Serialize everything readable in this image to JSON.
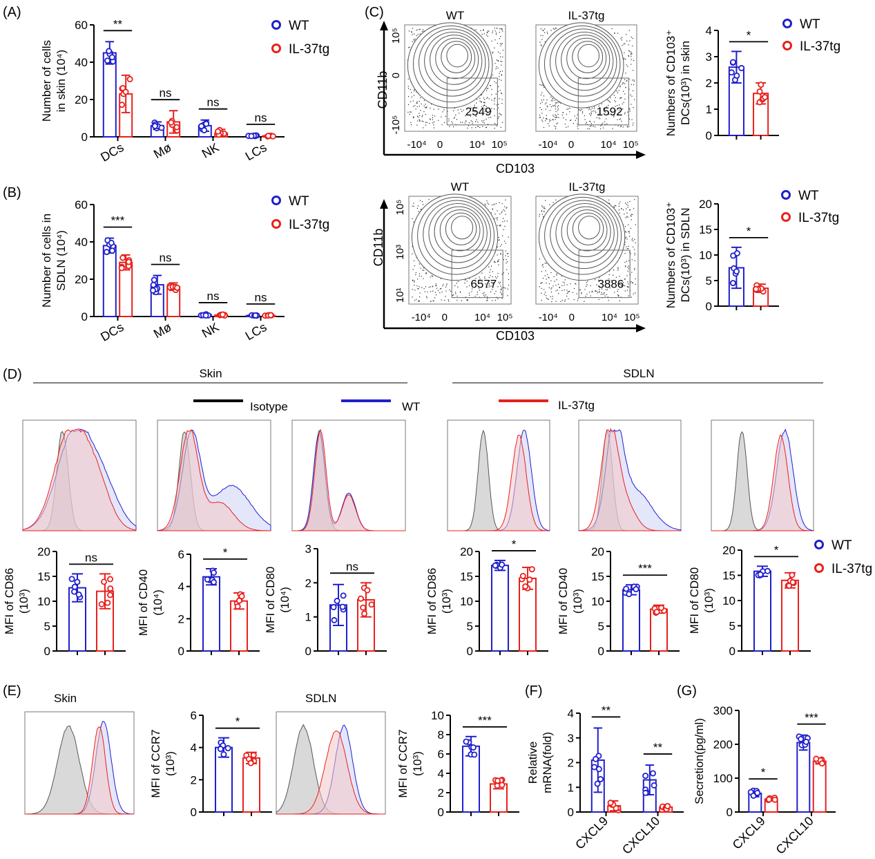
{
  "colors": {
    "wt": "#1f1fcc",
    "tg": "#e8201c",
    "isotype": "#000000",
    "iso_fill": "#cfcfcf",
    "wt_fill": "#c9cdf5",
    "tg_fill": "#f4c6c6"
  },
  "legend": {
    "wt": "WT",
    "tg": "IL-37tg",
    "isotype": "Isotype"
  },
  "panels": {
    "A": "(A)",
    "B": "(B)",
    "C": "(C)",
    "D": "(D)",
    "E": "(E)",
    "F": "(F)",
    "G": "(G)"
  },
  "headers": {
    "skin": "Skin",
    "sdln": "SDLN"
  },
  "flow": {
    "top": {
      "wt": "WT",
      "tg": "IL-37tg",
      "xlabel": "CD103",
      "ylabel": "CD11b",
      "yticks": [
        "10⁵",
        "0",
        "-10⁵"
      ],
      "xticks": [
        "-10⁴",
        "0",
        "10⁴",
        "10⁵"
      ],
      "count_wt": "2549",
      "count_tg": "1592"
    },
    "bottom": {
      "wt": "WT",
      "tg": "IL-37tg",
      "xlabel": "CD103",
      "ylabel": "CD11b",
      "yticks": [
        "10⁵",
        "10³",
        "10¹"
      ],
      "xticks": [
        "-10⁴",
        "0",
        "10⁴",
        "10⁵"
      ],
      "count_wt": "6577",
      "count_tg": "3886"
    }
  },
  "hist_labels": {
    "skin": "Skin",
    "sdln": "SDLN"
  },
  "chart_data": [
    {
      "id": "A",
      "type": "bar",
      "categories": [
        "DCs",
        "Mø",
        "NK",
        "LCs"
      ],
      "series": [
        {
          "name": "WT",
          "values": [
            45,
            6,
            6,
            0.5
          ],
          "sd": [
            6,
            2,
            3,
            0.3
          ]
        },
        {
          "name": "IL-37tg",
          "values": [
            23,
            8,
            2,
            0.5
          ],
          "sd": [
            10,
            6,
            2,
            0.3
          ]
        }
      ],
      "ylabel": "Number of cells\nin skin (10⁴)",
      "yticks": [
        "0",
        "20",
        "40",
        "60"
      ],
      "ylim": [
        0,
        60
      ],
      "significance": [
        "**",
        "ns",
        "ns",
        "ns"
      ]
    },
    {
      "id": "B",
      "type": "bar",
      "categories": [
        "DCs",
        "Mø",
        "NK",
        "LCs"
      ],
      "series": [
        {
          "name": "WT",
          "values": [
            38,
            17,
            1,
            0.5
          ],
          "sd": [
            4,
            5,
            0.5,
            0.3
          ]
        },
        {
          "name": "IL-37tg",
          "values": [
            29,
            16,
            0.8,
            0.5
          ],
          "sd": [
            4,
            2,
            0.4,
            0.3
          ]
        }
      ],
      "ylabel": "Number of cells in\nSDLN (10⁴)",
      "yticks": [
        "0",
        "20",
        "40",
        "60"
      ],
      "ylim": [
        0,
        60
      ],
      "significance": [
        "***",
        "ns",
        "ns",
        "ns"
      ]
    },
    {
      "id": "C-top",
      "type": "bar",
      "categories": [
        "WT",
        "IL-37tg"
      ],
      "values": [
        2.6,
        1.6
      ],
      "sd": [
        0.6,
        0.4
      ],
      "ylabel": "Numbers of CD103⁺\nDCs(10³) in skin",
      "yticks": [
        "0",
        "1",
        "2",
        "3",
        "4"
      ],
      "ylim": [
        0,
        4
      ],
      "significance": "*"
    },
    {
      "id": "C-bottom",
      "type": "bar",
      "categories": [
        "WT",
        "IL-37tg"
      ],
      "values": [
        7.5,
        3.5
      ],
      "sd": [
        4,
        0.8
      ],
      "ylabel": "Numbers of CD103⁺\nDCs(10³) in SDLN",
      "yticks": [
        "0",
        "5",
        "10",
        "15",
        "20"
      ],
      "ylim": [
        0,
        20
      ],
      "significance": "*"
    },
    {
      "id": "D-skin-CD86",
      "type": "bar",
      "categories": [
        "WT",
        "IL-37tg"
      ],
      "values": [
        12.7,
        12
      ],
      "sd": [
        2.8,
        3.5
      ],
      "ylabel": "MFI of CD86\n(10³)",
      "yticks": [
        "0",
        "5",
        "10",
        "15",
        "20"
      ],
      "ylim": [
        0,
        20
      ],
      "significance": "ns"
    },
    {
      "id": "D-skin-CD40",
      "type": "bar",
      "categories": [
        "WT",
        "IL-37tg"
      ],
      "values": [
        4.6,
        3.1
      ],
      "sd": [
        0.5,
        0.5
      ],
      "ylabel": "MFI of CD40\n(10⁴)",
      "yticks": [
        "0",
        "2",
        "4",
        "6"
      ],
      "ylim": [
        0,
        6
      ],
      "significance": "*"
    },
    {
      "id": "D-skin-CD80",
      "type": "bar",
      "categories": [
        "WT",
        "IL-37tg"
      ],
      "values": [
        1.35,
        1.5
      ],
      "sd": [
        0.6,
        0.5
      ],
      "ylabel": "MFI of CD80\n(10⁴)",
      "yticks": [
        "0",
        "1",
        "2",
        "3"
      ],
      "ylim": [
        0,
        3
      ],
      "significance": "ns"
    },
    {
      "id": "D-sdln-CD86",
      "type": "bar",
      "categories": [
        "WT",
        "IL-37tg"
      ],
      "values": [
        17.2,
        14.6
      ],
      "sd": [
        1,
        2.2
      ],
      "ylabel": "MFI of CD86\n(10³)",
      "yticks": [
        "0",
        "5",
        "10",
        "15",
        "20"
      ],
      "ylim": [
        0,
        20
      ],
      "significance": "*"
    },
    {
      "id": "D-sdln-CD40",
      "type": "bar",
      "categories": [
        "WT",
        "IL-37tg"
      ],
      "values": [
        12.3,
        8.4
      ],
      "sd": [
        1,
        0.8
      ],
      "ylabel": "MFI of CD40\n(10³)",
      "yticks": [
        "0",
        "5",
        "10",
        "15",
        "20"
      ],
      "ylim": [
        0,
        20
      ],
      "significance": "***"
    },
    {
      "id": "D-sdln-CD80",
      "type": "bar",
      "categories": [
        "WT",
        "IL-37tg"
      ],
      "values": [
        15.8,
        14
      ],
      "sd": [
        1,
        1.5
      ],
      "ylabel": "MFI of CD80\n(10³)",
      "yticks": [
        "0",
        "5",
        "10",
        "15",
        "20"
      ],
      "ylim": [
        0,
        20
      ],
      "significance": "*"
    },
    {
      "id": "E-skin",
      "type": "bar",
      "categories": [
        "WT",
        "IL-37tg"
      ],
      "values": [
        4.0,
        3.35
      ],
      "sd": [
        0.6,
        0.35
      ],
      "ylabel": "MFI of CCR7\n(10³)",
      "yticks": [
        "0",
        "2",
        "4",
        "6"
      ],
      "ylim": [
        0,
        6
      ],
      "significance": "*"
    },
    {
      "id": "E-sdln",
      "type": "bar",
      "categories": [
        "WT",
        "IL-37tg"
      ],
      "values": [
        6.8,
        2.9
      ],
      "sd": [
        1,
        0.5
      ],
      "ylabel": "MFI of CCR7\n(10³)",
      "yticks": [
        "0",
        "2",
        "4",
        "6",
        "8",
        "10"
      ],
      "ylim": [
        0,
        10
      ],
      "significance": "***"
    },
    {
      "id": "F",
      "type": "bar",
      "categories": [
        "CXCL9",
        "CXCL10"
      ],
      "series": [
        {
          "name": "WT",
          "values": [
            2.1,
            1.3
          ],
          "sd": [
            1.3,
            0.6
          ]
        },
        {
          "name": "IL-37tg",
          "values": [
            0.25,
            0.2
          ],
          "sd": [
            0.2,
            0.1
          ]
        }
      ],
      "ylabel": "Relative\nmRNA(fold)",
      "yticks": [
        "0",
        "1",
        "2",
        "3",
        "4"
      ],
      "ylim": [
        0,
        4
      ],
      "significance": [
        "**",
        "**"
      ]
    },
    {
      "id": "G",
      "type": "bar",
      "categories": [
        "CXCL9",
        "CXCL10"
      ],
      "series": [
        {
          "name": "WT",
          "values": [
            55,
            205
          ],
          "sd": [
            10,
            22
          ]
        },
        {
          "name": "IL-37tg",
          "values": [
            38,
            150
          ],
          "sd": [
            5,
            8
          ]
        }
      ],
      "ylabel": "Secretion(pg/ml)",
      "yticks": [
        "0",
        "100",
        "200",
        "300"
      ],
      "ylim": [
        0,
        300
      ],
      "significance": [
        "*",
        "***"
      ]
    }
  ]
}
